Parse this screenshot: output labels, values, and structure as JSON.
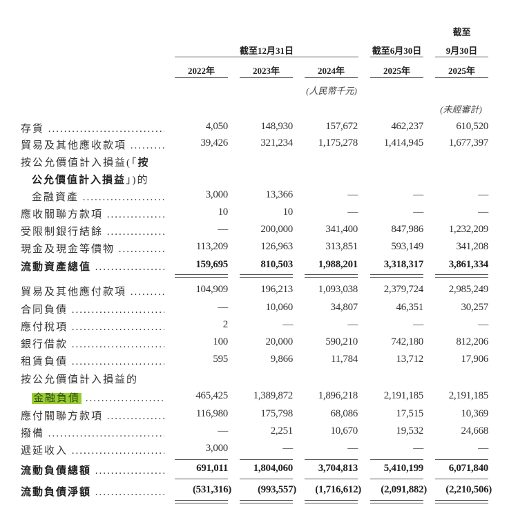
{
  "header": {
    "top_group_label": "截至",
    "groups": [
      "截至12月31日",
      "截至6月30日",
      "9月30日"
    ],
    "years": [
      "2022年",
      "2023年",
      "2024年",
      "2025年",
      "2025年"
    ],
    "currency_note": "(人民幣千元)",
    "unaudited_note": "(未經審計)"
  },
  "highlight_color": "#9acd32",
  "rows": [
    {
      "label": [
        {
          "t": "存貨"
        }
      ],
      "values": [
        "4,050",
        "148,930",
        "157,672",
        "462,237",
        "610,520"
      ]
    },
    {
      "label": [
        {
          "t": "貿易及其他應收款項"
        }
      ],
      "values": [
        "39,426",
        "321,234",
        "1,175,278",
        "1,414,945",
        "1,677,397"
      ]
    },
    {
      "label": [
        {
          "t": "按公允價值計入損益(「"
        },
        {
          "t": "按",
          "b": true
        }
      ],
      "values": [],
      "nodots": true
    },
    {
      "label": [
        {
          "t": "公允價值計入損益",
          "b": true
        },
        {
          "t": "」)的"
        }
      ],
      "values": [],
      "nodots": true,
      "indent": true
    },
    {
      "label": [
        {
          "t": "金融資產"
        }
      ],
      "values": [
        "3,000",
        "13,366",
        "—",
        "—",
        "—"
      ],
      "indent": true
    },
    {
      "label": [
        {
          "t": "應收關聯方款項"
        }
      ],
      "values": [
        "10",
        "10",
        "—",
        "—",
        "—"
      ]
    },
    {
      "label": [
        {
          "t": "受限制銀行結餘"
        }
      ],
      "values": [
        "—",
        "200,000",
        "341,400",
        "847,986",
        "1,232,209"
      ]
    },
    {
      "label": [
        {
          "t": "現金及現金等價物"
        }
      ],
      "values": [
        "113,209",
        "126,963",
        "313,851",
        "593,149",
        "341,208"
      ]
    },
    {
      "label": [
        {
          "t": "流動資產總值",
          "b": true
        }
      ],
      "values": [
        "159,695",
        "810,503",
        "1,988,201",
        "3,318,317",
        "3,861,334"
      ],
      "bold": true
    },
    {
      "label": [
        {
          "t": "貿易及其他應付款項"
        }
      ],
      "values": [
        "104,909",
        "196,213",
        "1,093,038",
        "2,379,724",
        "2,985,249"
      ]
    },
    {
      "label": [
        {
          "t": "合同負債"
        }
      ],
      "values": [
        "—",
        "10,060",
        "34,807",
        "46,351",
        "30,257"
      ]
    },
    {
      "label": [
        {
          "t": "應付稅項"
        }
      ],
      "values": [
        "2",
        "—",
        "—",
        "—",
        "—"
      ]
    },
    {
      "label": [
        {
          "t": "銀行借款"
        }
      ],
      "values": [
        "100",
        "20,000",
        "590,210",
        "742,180",
        "812,206"
      ]
    },
    {
      "label": [
        {
          "t": "租賃負債"
        }
      ],
      "values": [
        "595",
        "9,866",
        "11,784",
        "13,712",
        "17,906"
      ]
    },
    {
      "label": [
        {
          "t": "按公允價值計入損益的"
        }
      ],
      "values": [],
      "nodots": true
    },
    {
      "label": [
        {
          "t": "金融負債",
          "hl": true
        }
      ],
      "values": [
        "465,425",
        "1,389,872",
        "1,896,218",
        "2,191,185",
        "2,191,185"
      ],
      "indent": true
    },
    {
      "label": [
        {
          "t": "應付關聯方款項"
        }
      ],
      "values": [
        "116,980",
        "175,798",
        "68,086",
        "17,515",
        "10,369"
      ]
    },
    {
      "label": [
        {
          "t": "撥備"
        }
      ],
      "values": [
        "—",
        "2,251",
        "10,670",
        "19,532",
        "24,668"
      ]
    },
    {
      "label": [
        {
          "t": "遞延收入"
        }
      ],
      "values": [
        "3,000",
        "—",
        "—",
        "—",
        "—"
      ]
    },
    {
      "label": [
        {
          "t": "流動負債總額",
          "b": true
        }
      ],
      "values": [
        "691,011",
        "1,804,060",
        "3,704,813",
        "5,410,199",
        "6,071,840"
      ],
      "bold": true
    },
    {
      "label": [
        {
          "t": "流動負債淨額",
          "b": true
        }
      ],
      "values": [
        "(531,316)",
        "(993,557)",
        "(1,716,612)",
        "(2,091,882)",
        "(2,210,506)"
      ],
      "bold": true
    }
  ]
}
